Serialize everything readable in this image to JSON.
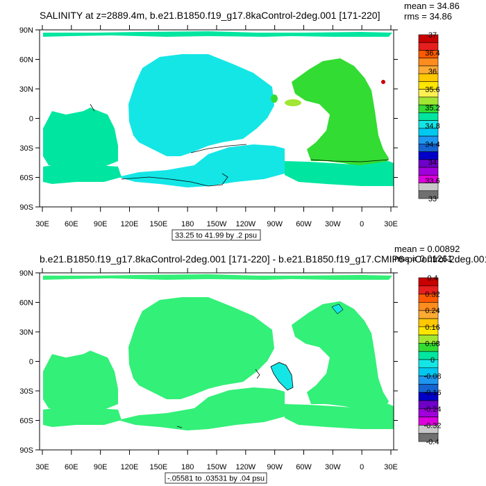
{
  "panels": [
    {
      "title": "SALINITY at z=2889.4m, b.e21.B1850.f19_g17.8kaControl-2deg.001 [171-220]",
      "stats": [
        "mean = 34.86",
        "rms = 34.86"
      ],
      "range_note": "33.25 to 41.99 by .2 psu",
      "lat_labels": [
        "90N",
        "60N",
        "30N",
        "0",
        "30S",
        "60S",
        "90S"
      ],
      "lon_labels": [
        "30E",
        "60E",
        "90E",
        "120E",
        "150E",
        "180",
        "150W",
        "120W",
        "90W",
        "60W",
        "30W",
        "0",
        "30E"
      ],
      "colorbar": {
        "labels": [
          "37",
          "36.4",
          "36",
          "35.6",
          "35.2",
          "34.8",
          "34.4",
          "34",
          "33.6",
          "33"
        ],
        "colors": [
          "#c80000",
          "#e61e1e",
          "#ff5a00",
          "#ff8c1e",
          "#ffaa33",
          "#ffc800",
          "#ffe600",
          "#fff050",
          "#a0e632",
          "#32dc32",
          "#00e6a0",
          "#14e6e6",
          "#00c8f0",
          "#1e96f0",
          "#1464d2",
          "#0000c8",
          "#6e00c8",
          "#a000dc",
          "#dc00dc",
          "#c8c8c8",
          "#707070"
        ]
      },
      "ocean_colors": {
        "pacific": "#14e6e6",
        "indian": "#00e6a0",
        "atlantic": "#32dc32",
        "arctic": "#00e6a0"
      }
    },
    {
      "title": "b.e21.B1850.f19_g17.8kaControl-2deg.001 [171-220] - b.e21.B1850.f19_g17.CMIP6-piControl-2deg.001",
      "stats": [
        "mean = 0.00892",
        "rms = 0.01261"
      ],
      "range_note": "-.05581 to .03531 by .04 psu",
      "lat_labels": [
        "90N",
        "60N",
        "30N",
        "0",
        "30S",
        "60S",
        "90S"
      ],
      "lon_labels": [
        "30E",
        "60E",
        "90E",
        "120E",
        "150E",
        "180",
        "150W",
        "120W",
        "90W",
        "60W",
        "30W",
        "0",
        "30E"
      ],
      "colorbar": {
        "labels": [
          "0.4",
          "0.32",
          "0.24",
          "0.16",
          "0.08",
          "0",
          "-0.08",
          "-0.16",
          "-0.24",
          "-0.32",
          "-0.4"
        ],
        "colors": [
          "#c80000",
          "#e61e1e",
          "#ff5a00",
          "#ff8c1e",
          "#ffaa33",
          "#ffc800",
          "#ffe600",
          "#a0e632",
          "#32dc32",
          "#00e6a0",
          "#14e6e6",
          "#00c8f0",
          "#1e96f0",
          "#1464d2",
          "#0000c8",
          "#6e00c8",
          "#a000dc",
          "#dc00dc",
          "#c8c8c8",
          "#707070"
        ]
      },
      "ocean_colors": {
        "pacific": "#32f078",
        "indian": "#32f078",
        "atlantic": "#32f078",
        "arctic": "#32f078"
      }
    }
  ]
}
